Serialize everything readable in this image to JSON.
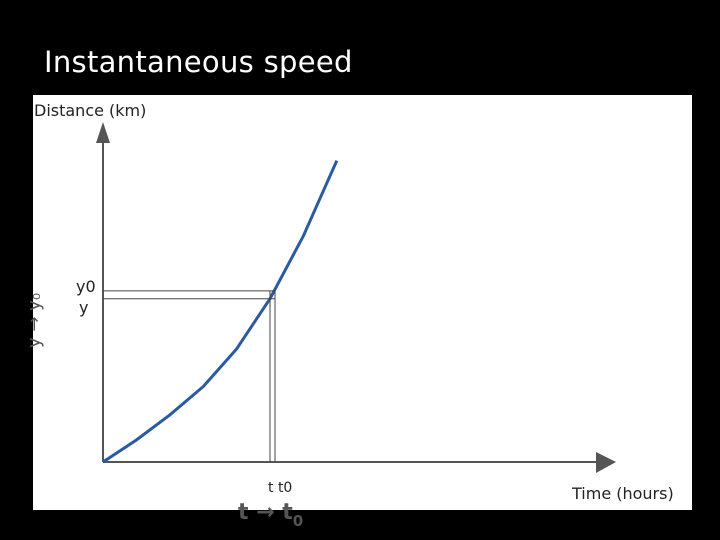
{
  "slide": {
    "title": "Instantaneous speed",
    "side_label": "y → y₀",
    "bottom_label_main": "t → t",
    "bottom_label_sub": "0"
  },
  "colors": {
    "background": "#000000",
    "panel": "#ffffff",
    "curve": "#2a5aa0",
    "axis": "#555555"
  },
  "chart_data": {
    "type": "line",
    "title": "",
    "ylabel": "Distance (km)",
    "xlabel": "Time (hours)",
    "grid": false,
    "ticks": {
      "y_upper": "y0",
      "y_lower": "y",
      "x_labels": "t t0"
    },
    "xlim": [
      0,
      10
    ],
    "ylim": [
      0,
      10
    ],
    "series": [
      {
        "x": [
          0,
          1,
          2,
          3,
          4,
          4.5,
          5,
          5.5,
          6,
          6.5,
          7
        ],
        "values": [
          0,
          0.7,
          1.5,
          2.4,
          3.6,
          4.4,
          5.2,
          6.2,
          7.2,
          8.4,
          9.6
        ]
      }
    ],
    "markers": {
      "t": 5.0,
      "t0": 5.15,
      "y": 5.2,
      "y0": 5.45
    }
  }
}
